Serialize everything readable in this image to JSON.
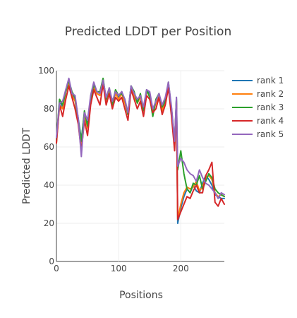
{
  "chart_data": {
    "type": "line",
    "title": "Predicted LDDT per Position",
    "xlabel": "Positions",
    "ylabel": "Predicted LDDT",
    "xlim": [
      0,
      270
    ],
    "ylim": [
      0,
      100
    ],
    "xticks": [
      0,
      100,
      200
    ],
    "yticks": [
      0,
      20,
      40,
      60,
      80,
      100
    ],
    "grid": true,
    "legend_position": "top-right",
    "x": [
      0,
      5,
      10,
      15,
      20,
      25,
      30,
      35,
      40,
      45,
      50,
      55,
      60,
      65,
      70,
      75,
      80,
      85,
      90,
      95,
      100,
      105,
      110,
      115,
      120,
      125,
      130,
      135,
      140,
      145,
      150,
      155,
      160,
      165,
      170,
      175,
      180,
      185,
      190,
      193,
      195,
      200,
      205,
      210,
      215,
      220,
      225,
      230,
      235,
      240,
      245,
      250,
      255,
      260,
      265,
      270
    ],
    "series": [
      {
        "name": "rank 1",
        "color": "#1f77b4",
        "values": [
          63,
          84,
          81,
          90,
          94,
          88,
          85,
          75,
          64,
          78,
          72,
          86,
          92,
          89,
          88,
          95,
          85,
          90,
          83,
          89,
          86,
          89,
          84,
          78,
          92,
          88,
          84,
          87,
          80,
          90,
          88,
          79,
          84,
          88,
          80,
          85,
          93,
          80,
          62,
          86,
          20,
          28,
          34,
          38,
          36,
          40,
          37,
          36,
          41,
          45,
          43,
          40,
          35,
          34,
          33,
          33
        ]
      },
      {
        "name": "rank 2",
        "color": "#ff7f0e",
        "values": [
          62,
          82,
          80,
          89,
          93,
          87,
          84,
          74,
          62,
          77,
          70,
          85,
          91,
          88,
          87,
          94,
          84,
          89,
          82,
          88,
          85,
          88,
          83,
          77,
          91,
          87,
          83,
          86,
          79,
          89,
          87,
          78,
          83,
          87,
          79,
          84,
          92,
          79,
          61,
          84,
          22,
          30,
          36,
          39,
          38,
          39,
          42,
          37,
          39,
          44,
          45,
          43,
          36,
          34,
          35,
          34
        ]
      },
      {
        "name": "rank 3",
        "color": "#2ca02c",
        "values": [
          64,
          85,
          82,
          89,
          95,
          89,
          86,
          74,
          63,
          79,
          71,
          85,
          93,
          89,
          89,
          96,
          85,
          91,
          82,
          90,
          87,
          88,
          85,
          77,
          92,
          89,
          83,
          88,
          79,
          90,
          86,
          76,
          85,
          88,
          81,
          84,
          94,
          80,
          63,
          85,
          48,
          58,
          46,
          38,
          36,
          41,
          40,
          45,
          38,
          42,
          46,
          44,
          38,
          36,
          35,
          34
        ]
      },
      {
        "name": "rank 4",
        "color": "#d62728",
        "values": [
          62,
          82,
          76,
          85,
          92,
          86,
          80,
          72,
          58,
          74,
          66,
          82,
          90,
          86,
          82,
          93,
          82,
          88,
          80,
          86,
          84,
          86,
          80,
          74,
          90,
          85,
          80,
          84,
          76,
          87,
          85,
          78,
          80,
          86,
          77,
          82,
          91,
          76,
          58,
          83,
          22,
          26,
          30,
          34,
          33,
          37,
          40,
          36,
          36,
          45,
          48,
          52,
          31,
          29,
          33,
          30
        ]
      },
      {
        "name": "rank 5",
        "color": "#9467bd",
        "values": [
          65,
          83,
          84,
          90,
          96,
          88,
          87,
          75,
          55,
          78,
          74,
          87,
          94,
          89,
          88,
          95,
          86,
          91,
          84,
          89,
          87,
          89,
          85,
          78,
          92,
          88,
          85,
          87,
          81,
          90,
          89,
          80,
          84,
          88,
          82,
          86,
          94,
          81,
          63,
          86,
          50,
          54,
          52,
          48,
          46,
          45,
          42,
          48,
          44,
          41,
          40,
          38,
          36,
          33,
          36,
          35
        ]
      }
    ]
  }
}
